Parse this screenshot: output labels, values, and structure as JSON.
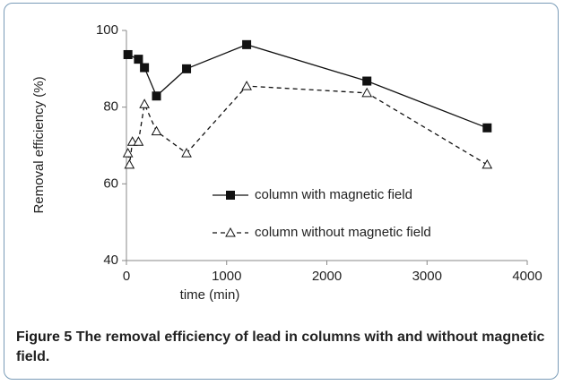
{
  "chart_data": {
    "type": "line",
    "xlabel": "time (min)",
    "ylabel": "Removal efficiency (%)",
    "xlim": [
      0,
      4000
    ],
    "xticks": [
      0,
      1000,
      2000,
      3000,
      4000
    ],
    "ylim": [
      40,
      100
    ],
    "yticks": [
      40,
      60,
      80,
      100
    ],
    "legend": "center-right",
    "series": [
      {
        "name": "column with magnetic field",
        "color": "#111111",
        "marker": "square",
        "dash": "solid",
        "x": [
          15,
          120,
          180,
          300,
          600,
          1200,
          2400,
          3600
        ],
        "values": [
          93.7,
          92.5,
          90.3,
          82.9,
          90,
          96.3,
          86.8,
          74.6
        ]
      },
      {
        "name": "column without magnetic field",
        "color": "#111111",
        "marker": "triangle-open",
        "dash": "dashed",
        "x": [
          15,
          30,
          60,
          120,
          180,
          300,
          600,
          1200,
          2400,
          3600
        ],
        "values": [
          68,
          65,
          71,
          71,
          80.8,
          73.7,
          68,
          85.5,
          83.7,
          65
        ]
      }
    ]
  },
  "caption": {
    "label": "Figure 5",
    "text": "The removal efficiency of lead in columns with and without magnetic field."
  }
}
